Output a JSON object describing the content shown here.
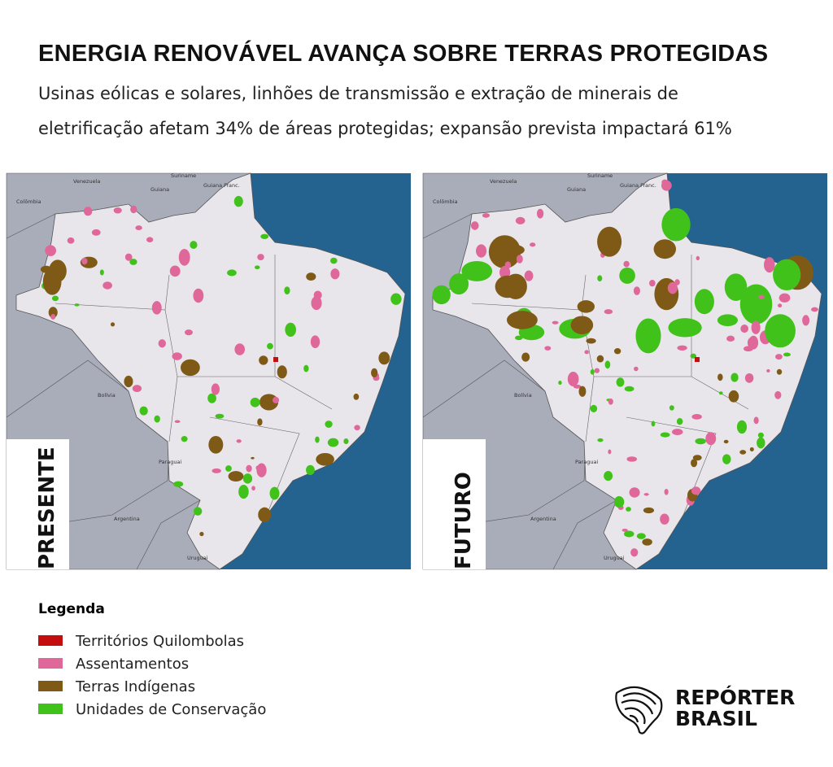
{
  "header": {
    "title": "ENERGIA RENOVÁVEL AVANÇA SOBRE TERRAS PROTEGIDAS",
    "subtitle_lines": [
      "Usinas eólicas e solares, linhões de transmissão e extração de minerais de",
      "eletrificação afetam 34% de áreas protegidas; expansão prevista impactará 61%"
    ]
  },
  "maps": [
    {
      "label": "PRESENTE"
    },
    {
      "label": "FUTURO"
    }
  ],
  "map_labels": [
    "Venezuela",
    "Suriname",
    "Guiana Franc.",
    "Guiana",
    "Colômbia",
    "Bolívia",
    "Paraguai",
    "Argentina",
    "Uruguai"
  ],
  "legend": {
    "title": "Legenda",
    "items": [
      {
        "label": "Territórios Quilombolas",
        "color": "#c40d0d"
      },
      {
        "label": "Assentamentos",
        "color": "#e0679a"
      },
      {
        "label": "Terras Indígenas",
        "color": "#7e5a16"
      },
      {
        "label": "Unidades de Conservação",
        "color": "#41c21a"
      }
    ]
  },
  "logo": {
    "lines": [
      "REPÓRTER",
      "BRASIL"
    ]
  }
}
